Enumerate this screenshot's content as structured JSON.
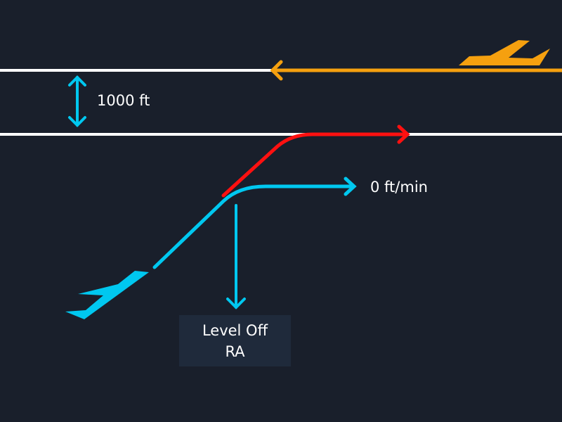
{
  "labels": {
    "separation": "1000 ft",
    "vertical_speed": "0 ft/min",
    "ra_line1": "Level Off",
    "ra_line2": "RA"
  },
  "colors": {
    "background": "#191f2b",
    "own_aircraft": "#00c8f0",
    "intruder": "#f5a00f",
    "original_path": "#ff1010",
    "reference_lines": "#ffffff",
    "label_box": "#1f2a3b"
  }
}
